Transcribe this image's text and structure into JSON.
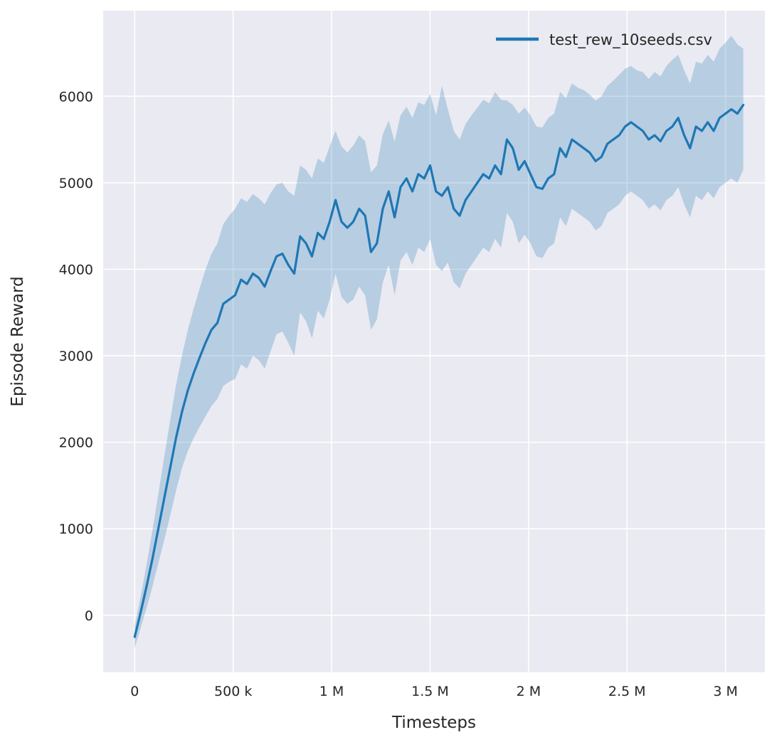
{
  "styles": {
    "plot_bg": "#eaeaf2",
    "grid_color": "#ffffff",
    "text_color": "#262626"
  },
  "chart_data": {
    "type": "line",
    "title": "",
    "xlabel": "Timesteps",
    "ylabel": "Episode Reward",
    "grid": true,
    "legend_position": "upper right",
    "xlim": [
      -160000,
      3200000
    ],
    "ylim": [
      -660,
      6990
    ],
    "x_ticks": [
      {
        "v": 0,
        "label": "0"
      },
      {
        "v": 500000,
        "label": "500 k"
      },
      {
        "v": 1000000,
        "label": "1 M"
      },
      {
        "v": 1500000,
        "label": "1.5 M"
      },
      {
        "v": 2000000,
        "label": "2 M"
      },
      {
        "v": 2500000,
        "label": "2.5 M"
      },
      {
        "v": 3000000,
        "label": "3 M"
      }
    ],
    "y_ticks": [
      {
        "v": 0,
        "label": "0"
      },
      {
        "v": 1000,
        "label": "1000"
      },
      {
        "v": 2000,
        "label": "2000"
      },
      {
        "v": 3000,
        "label": "3000"
      },
      {
        "v": 4000,
        "label": "4000"
      },
      {
        "v": 5000,
        "label": "5000"
      },
      {
        "v": 6000,
        "label": "6000"
      }
    ],
    "series": [
      {
        "name": "test_rew_10seeds.csv",
        "color": "#1f77b4",
        "band_alpha": 0.25,
        "points_format": [
          "x",
          "lo",
          "mean",
          "hi"
        ],
        "points": [
          [
            0,
            -380,
            -250,
            -120
          ],
          [
            30000,
            -150,
            30,
            210
          ],
          [
            60000,
            80,
            330,
            580
          ],
          [
            90000,
            330,
            650,
            980
          ],
          [
            120000,
            600,
            1000,
            1400
          ],
          [
            150000,
            870,
            1350,
            1830
          ],
          [
            180000,
            1150,
            1700,
            2250
          ],
          [
            210000,
            1440,
            2050,
            2660
          ],
          [
            240000,
            1700,
            2350,
            3000
          ],
          [
            270000,
            1900,
            2600,
            3300
          ],
          [
            300000,
            2050,
            2800,
            3550
          ],
          [
            330000,
            2180,
            2980,
            3780
          ],
          [
            360000,
            2300,
            3150,
            4000
          ],
          [
            390000,
            2420,
            3300,
            4180
          ],
          [
            420000,
            2500,
            3380,
            4300
          ],
          [
            450000,
            2650,
            3600,
            4520
          ],
          [
            480000,
            2700,
            3650,
            4620
          ],
          [
            510000,
            2730,
            3700,
            4700
          ],
          [
            540000,
            2900,
            3880,
            4820
          ],
          [
            570000,
            2850,
            3830,
            4780
          ],
          [
            600000,
            3000,
            3950,
            4870
          ],
          [
            630000,
            2950,
            3900,
            4820
          ],
          [
            660000,
            2850,
            3800,
            4750
          ],
          [
            690000,
            3050,
            3980,
            4880
          ],
          [
            720000,
            3250,
            4150,
            4980
          ],
          [
            750000,
            3280,
            4180,
            5000
          ],
          [
            780000,
            3150,
            4050,
            4900
          ],
          [
            810000,
            3000,
            3950,
            4850
          ],
          [
            840000,
            3500,
            4380,
            5200
          ],
          [
            870000,
            3400,
            4300,
            5150
          ],
          [
            900000,
            3200,
            4150,
            5050
          ],
          [
            930000,
            3520,
            4420,
            5280
          ],
          [
            960000,
            3430,
            4350,
            5230
          ],
          [
            990000,
            3650,
            4550,
            5420
          ],
          [
            1020000,
            3950,
            4800,
            5600
          ],
          [
            1050000,
            3680,
            4550,
            5420
          ],
          [
            1080000,
            3600,
            4480,
            5350
          ],
          [
            1110000,
            3650,
            4550,
            5430
          ],
          [
            1140000,
            3800,
            4700,
            5550
          ],
          [
            1170000,
            3700,
            4620,
            5480
          ],
          [
            1200000,
            3300,
            4200,
            5120
          ],
          [
            1230000,
            3420,
            4300,
            5200
          ],
          [
            1260000,
            3850,
            4700,
            5560
          ],
          [
            1290000,
            4050,
            4900,
            5720
          ],
          [
            1320000,
            3700,
            4600,
            5480
          ],
          [
            1350000,
            4100,
            4950,
            5780
          ],
          [
            1380000,
            4200,
            5050,
            5880
          ],
          [
            1410000,
            4050,
            4900,
            5750
          ],
          [
            1440000,
            4250,
            5100,
            5930
          ],
          [
            1470000,
            4200,
            5050,
            5900
          ],
          [
            1500000,
            4350,
            5200,
            6030
          ],
          [
            1530000,
            4050,
            4900,
            5780
          ],
          [
            1560000,
            3980,
            4850,
            6120
          ],
          [
            1590000,
            4080,
            4950,
            5850
          ],
          [
            1620000,
            3850,
            4700,
            5600
          ],
          [
            1650000,
            3780,
            4620,
            5500
          ],
          [
            1680000,
            3950,
            4800,
            5680
          ],
          [
            1710000,
            4050,
            4900,
            5780
          ],
          [
            1740000,
            4150,
            5000,
            5870
          ],
          [
            1770000,
            4250,
            5100,
            5960
          ],
          [
            1800000,
            4200,
            5050,
            5920
          ],
          [
            1830000,
            4350,
            5200,
            6050
          ],
          [
            1860000,
            4250,
            5100,
            5960
          ],
          [
            1890000,
            4650,
            5500,
            5950
          ],
          [
            1920000,
            4550,
            5400,
            5900
          ],
          [
            1950000,
            4300,
            5150,
            5800
          ],
          [
            1980000,
            4400,
            5250,
            5870
          ],
          [
            2010000,
            4300,
            5100,
            5780
          ],
          [
            2040000,
            4150,
            4950,
            5650
          ],
          [
            2070000,
            4130,
            4930,
            5640
          ],
          [
            2100000,
            4250,
            5050,
            5750
          ],
          [
            2130000,
            4300,
            5100,
            5800
          ],
          [
            2160000,
            4600,
            5400,
            6050
          ],
          [
            2190000,
            4500,
            5300,
            5980
          ],
          [
            2220000,
            4700,
            5500,
            6150
          ],
          [
            2250000,
            4650,
            5450,
            6100
          ],
          [
            2280000,
            4600,
            5400,
            6070
          ],
          [
            2310000,
            4550,
            5350,
            6020
          ],
          [
            2340000,
            4450,
            5250,
            5950
          ],
          [
            2370000,
            4500,
            5300,
            6000
          ],
          [
            2400000,
            4650,
            5450,
            6120
          ],
          [
            2430000,
            4700,
            5500,
            6180
          ],
          [
            2460000,
            4750,
            5550,
            6250
          ],
          [
            2490000,
            4850,
            5650,
            6320
          ],
          [
            2520000,
            4900,
            5700,
            6350
          ],
          [
            2550000,
            4850,
            5650,
            6300
          ],
          [
            2580000,
            4800,
            5600,
            6280
          ],
          [
            2610000,
            4700,
            5500,
            6200
          ],
          [
            2640000,
            4750,
            5550,
            6280
          ],
          [
            2670000,
            4680,
            5480,
            6230
          ],
          [
            2700000,
            4800,
            5600,
            6350
          ],
          [
            2730000,
            4850,
            5650,
            6420
          ],
          [
            2760000,
            4950,
            5750,
            6480
          ],
          [
            2790000,
            4750,
            5550,
            6300
          ],
          [
            2820000,
            4600,
            5400,
            6150
          ],
          [
            2850000,
            4850,
            5650,
            6400
          ],
          [
            2880000,
            4800,
            5600,
            6380
          ],
          [
            2910000,
            4900,
            5700,
            6480
          ],
          [
            2940000,
            4820,
            5600,
            6400
          ],
          [
            2970000,
            4950,
            5750,
            6550
          ],
          [
            3000000,
            5000,
            5800,
            6620
          ],
          [
            3030000,
            5050,
            5850,
            6700
          ],
          [
            3060000,
            5000,
            5800,
            6600
          ],
          [
            3090000,
            5150,
            5900,
            6550
          ]
        ]
      }
    ]
  }
}
